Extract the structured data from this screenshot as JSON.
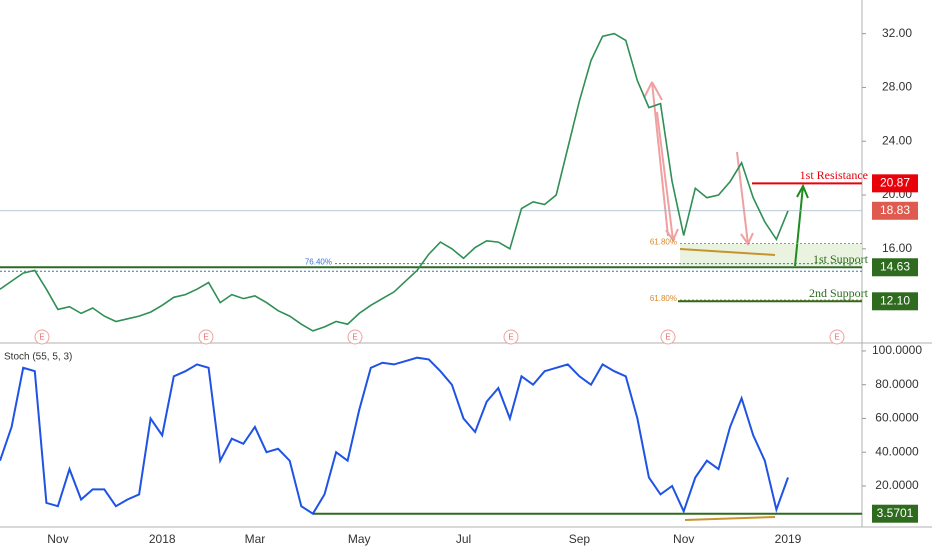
{
  "chart_data": [
    {
      "type": "line",
      "categories": [
        null,
        null,
        null,
        null,
        null,
        "Nov",
        null,
        null,
        null,
        null,
        null,
        null,
        null,
        null,
        "2018",
        null,
        null,
        null,
        null,
        null,
        null,
        null,
        "Mar",
        null,
        null,
        null,
        null,
        null,
        null,
        null,
        null,
        "May",
        null,
        null,
        null,
        null,
        null,
        null,
        null,
        null,
        "Jul",
        null,
        null,
        null,
        null,
        null,
        null,
        null,
        null,
        null,
        "Sep",
        null,
        null,
        null,
        null,
        null,
        null,
        null,
        null,
        "Nov",
        null,
        null,
        null,
        null,
        null,
        null,
        null,
        null,
        "2019"
      ],
      "series": [
        {
          "name": null,
          "color": "#2f8f55",
          "values": [
            13.0,
            13.6,
            14.2,
            14.4,
            13.0,
            11.5,
            11.7,
            11.2,
            11.6,
            11.0,
            10.6,
            10.8,
            11.0,
            11.3,
            11.8,
            12.4,
            12.6,
            13.0,
            13.5,
            12.0,
            12.6,
            12.3,
            12.5,
            12.0,
            11.4,
            11.0,
            10.4,
            9.9,
            10.2,
            10.6,
            10.4,
            11.2,
            11.8,
            12.3,
            12.8,
            13.6,
            14.4,
            15.6,
            16.5,
            16.0,
            15.3,
            16.1,
            16.6,
            16.5,
            16.0,
            19.0,
            19.5,
            19.3,
            20.0,
            23.5,
            27.0,
            30.0,
            31.8,
            32.0,
            31.5,
            28.5,
            26.5,
            26.8,
            21.0,
            17.0,
            20.5,
            19.8,
            20.0,
            21.0,
            22.4,
            19.8,
            18.0,
            16.7,
            18.83
          ]
        }
      ],
      "ylim": [
        9.0,
        34.5
      ],
      "yticks": [
        {
          "value": 16,
          "label": "16.00"
        },
        {
          "value": 20,
          "label": "20.00"
        },
        {
          "value": 24,
          "label": "24.00"
        },
        {
          "value": 28,
          "label": "28.00"
        },
        {
          "value": 32,
          "label": "32.00"
        }
      ],
      "grid": false,
      "levels": [
        {
          "label": "1st Resistance",
          "value": 20.87,
          "value_label": "20.87",
          "color": "#e8000b"
        },
        {
          "label": null,
          "value": 18.83,
          "value_label": "18.83",
          "color": "#e05b4f"
        },
        {
          "label": "1st Support",
          "value": 14.63,
          "value_label": "14.63",
          "color": "#2e6b1e"
        },
        {
          "label": "2nd Support",
          "value": 12.1,
          "value_label": "12.10",
          "color": "#2e6b1e"
        }
      ],
      "fib_levels": [
        {
          "label": "61.80%",
          "value": 16.4
        },
        {
          "label": "76.40%",
          "value": 14.9
        },
        {
          "label": "61.80%",
          "value": 12.2
        }
      ],
      "events": [
        "E",
        "E",
        "E",
        "E",
        "E",
        "E"
      ]
    },
    {
      "type": "line",
      "title": "Stoch (55, 5, 3)",
      "series": [
        {
          "name": null,
          "color": "#1e53e5",
          "values": [
            35,
            55,
            90,
            88,
            10,
            8,
            30,
            12,
            18,
            18,
            8,
            12,
            15,
            60,
            50,
            85,
            88,
            92,
            90,
            35,
            48,
            45,
            55,
            40,
            42,
            35,
            8,
            3.57,
            15,
            40,
            35,
            65,
            90,
            93,
            92,
            94,
            96,
            95,
            88,
            80,
            60,
            52,
            70,
            78,
            60,
            85,
            80,
            88,
            90,
            92,
            85,
            80,
            92,
            88,
            85,
            60,
            25,
            15,
            20,
            5,
            25,
            35,
            30,
            55,
            72,
            50,
            35,
            6,
            25
          ]
        }
      ],
      "ylim": [
        -4.3,
        104.7
      ],
      "yticks": [
        {
          "value": 20,
          "label": "20.0000"
        },
        {
          "value": 40,
          "label": "40.0000"
        },
        {
          "value": 60,
          "label": "60.0000"
        },
        {
          "value": 80,
          "label": "80.0000"
        },
        {
          "value": 100,
          "label": "100.0000"
        }
      ],
      "grid": false,
      "levels": [
        {
          "label": null,
          "value": 3.5701,
          "value_label": "3.5701",
          "color": "#2e6b1e"
        }
      ]
    }
  ]
}
